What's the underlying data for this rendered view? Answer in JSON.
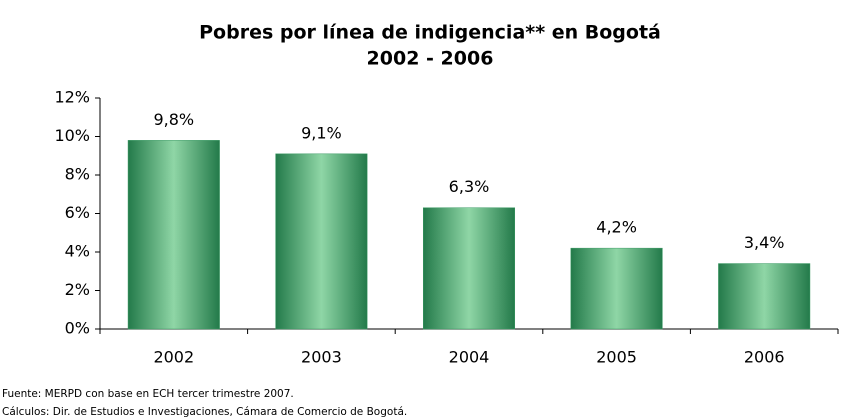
{
  "chart_data": {
    "type": "bar",
    "title": "Pobres por línea de indigencia** en Bogotá",
    "subtitle": "2002 - 2006",
    "categories": [
      "2002",
      "2003",
      "2004",
      "2005",
      "2006"
    ],
    "values": [
      9.8,
      9.1,
      6.3,
      4.2,
      3.4
    ],
    "value_labels": [
      "9,8%",
      "9,1%",
      "6,3%",
      "4,2%",
      "3,4%"
    ],
    "color": "#3a9a63",
    "ylim": [
      0,
      12
    ],
    "yticks": [
      {
        "value": 0,
        "label": "0%"
      },
      {
        "value": 2,
        "label": "2%"
      },
      {
        "value": 4,
        "label": "4%"
      },
      {
        "value": 6,
        "label": "6%"
      },
      {
        "value": 8,
        "label": "8%"
      },
      {
        "value": 10,
        "label": "10%"
      },
      {
        "value": 12,
        "label": "12%"
      }
    ],
    "grid": false,
    "notes": [
      "Fuente: MERPD con base en ECH tercer trimestre 2007.",
      "Cálculos: Dir. de Estudios e Investigaciones, Cámara de Comercio de Bogotá."
    ]
  }
}
